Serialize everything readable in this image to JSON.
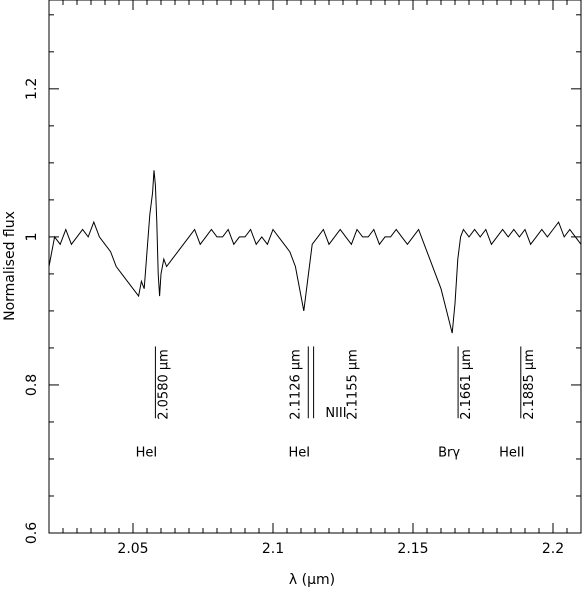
{
  "chart_data": {
    "type": "line",
    "title": "",
    "xlabel": "λ (μm)",
    "ylabel": "Normalised flux",
    "xlim": [
      2.02,
      2.21
    ],
    "ylim": [
      0.6,
      1.32
    ],
    "xticks": [
      2.05,
      2.1,
      2.15,
      2.2
    ],
    "xtick_labels": [
      "2.05",
      "2.1",
      "2.15",
      "2.2"
    ],
    "yticks": [
      0.6,
      0.8,
      1.0,
      1.2
    ],
    "ytick_labels": [
      "0.6",
      "0.8",
      "1",
      "1.2"
    ],
    "grid": false,
    "series": [
      {
        "name": "",
        "x": [
          2.02,
          2.022,
          2.024,
          2.026,
          2.028,
          2.03,
          2.032,
          2.034,
          2.036,
          2.038,
          2.04,
          2.042,
          2.044,
          2.046,
          2.048,
          2.05,
          2.052,
          2.053,
          2.054,
          2.055,
          2.056,
          2.057,
          2.0575,
          2.058,
          2.0585,
          2.059,
          2.0595,
          2.06,
          2.061,
          2.062,
          2.064,
          2.066,
          2.068,
          2.07,
          2.072,
          2.074,
          2.076,
          2.078,
          2.08,
          2.082,
          2.084,
          2.086,
          2.088,
          2.09,
          2.092,
          2.094,
          2.096,
          2.098,
          2.1,
          2.102,
          2.104,
          2.106,
          2.108,
          2.11,
          2.111,
          2.112,
          2.113,
          2.114,
          2.116,
          2.118,
          2.12,
          2.122,
          2.124,
          2.126,
          2.128,
          2.13,
          2.132,
          2.134,
          2.136,
          2.138,
          2.14,
          2.142,
          2.144,
          2.146,
          2.148,
          2.15,
          2.152,
          2.154,
          2.156,
          2.158,
          2.16,
          2.162,
          2.164,
          2.165,
          2.166,
          2.167,
          2.168,
          2.17,
          2.172,
          2.174,
          2.176,
          2.178,
          2.18,
          2.182,
          2.184,
          2.186,
          2.188,
          2.19,
          2.192,
          2.194,
          2.196,
          2.198,
          2.2,
          2.202,
          2.204,
          2.206,
          2.208,
          2.21
        ],
        "y": [
          0.96,
          1.0,
          0.99,
          1.01,
          0.99,
          1.0,
          1.01,
          1.0,
          1.02,
          1.0,
          0.99,
          0.98,
          0.96,
          0.95,
          0.94,
          0.93,
          0.92,
          0.94,
          0.93,
          0.98,
          1.03,
          1.06,
          1.09,
          1.07,
          1.02,
          0.95,
          0.92,
          0.95,
          0.97,
          0.96,
          0.97,
          0.98,
          0.99,
          1.0,
          1.01,
          0.99,
          1.0,
          1.01,
          1.0,
          1.0,
          1.01,
          0.99,
          1.0,
          1.0,
          1.01,
          0.99,
          1.0,
          0.99,
          1.01,
          1.0,
          0.99,
          0.98,
          0.96,
          0.92,
          0.9,
          0.93,
          0.96,
          0.99,
          1.0,
          1.01,
          0.99,
          1.0,
          1.01,
          1.0,
          0.99,
          1.01,
          1.0,
          1.0,
          1.01,
          0.99,
          1.0,
          1.0,
          1.01,
          1.0,
          0.99,
          1.0,
          1.01,
          0.99,
          0.97,
          0.95,
          0.93,
          0.9,
          0.87,
          0.91,
          0.97,
          1.0,
          1.01,
          1.0,
          1.01,
          1.0,
          1.01,
          0.99,
          1.0,
          1.01,
          1.0,
          1.01,
          1.0,
          1.01,
          0.99,
          1.0,
          1.01,
          1.0,
          1.01,
          1.02,
          1.0,
          1.01,
          1.0,
          0.99
        ]
      }
    ],
    "line_markers": [
      {
        "x": 2.058,
        "label": "2.0580 μm"
      },
      {
        "x": 2.1126,
        "label": "2.1126 μm"
      },
      {
        "x": 2.1145,
        "label": ""
      },
      {
        "x": 2.1661,
        "label": "2.1661 μm"
      },
      {
        "x": 2.1885,
        "label": "2.1885 μm"
      }
    ],
    "extra_labels": [
      {
        "x_ref": 2.1155,
        "label": "2.1155 μm"
      },
      {
        "x_ref": 2.121,
        "label": "NIII"
      }
    ],
    "ion_labels": [
      {
        "x": 2.058,
        "label": "HeI"
      },
      {
        "x": 2.1126,
        "label": "HeI"
      },
      {
        "x": 2.1661,
        "label": "Brγ"
      },
      {
        "x": 2.1885,
        "label": "HeII"
      }
    ],
    "marker_y_range": [
      0.755,
      0.852
    ],
    "ion_label_y": 0.71
  }
}
